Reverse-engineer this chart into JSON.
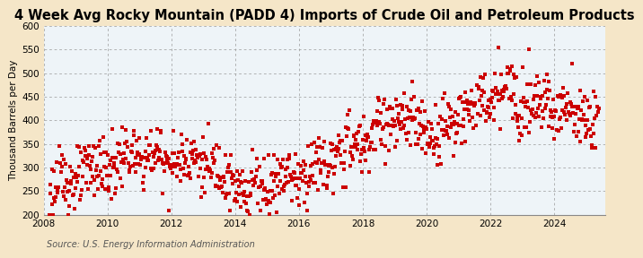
{
  "title": "4 Week Avg Rocky Mountain (PADD 4) Imports of Crude Oil and Petroleum Products",
  "ylabel": "Thousand Barrels per Day",
  "source": "Source: U.S. Energy Information Administration",
  "bg_color": "#F5E6C8",
  "plot_bg_color": "#EEF4F8",
  "marker_color": "#CC0000",
  "marker": "s",
  "marker_size": 7,
  "xlim_start": 2008.0,
  "xlim_end": 2025.6,
  "ylim": [
    200,
    600
  ],
  "yticks": [
    200,
    250,
    300,
    350,
    400,
    450,
    500,
    550,
    600
  ],
  "xticks": [
    2008,
    2010,
    2012,
    2014,
    2016,
    2018,
    2020,
    2022,
    2024
  ],
  "grid_color": "#999999",
  "grid_style": "--",
  "title_fontsize": 10.5,
  "label_fontsize": 7.5,
  "tick_fontsize": 7.5,
  "source_fontsize": 7
}
